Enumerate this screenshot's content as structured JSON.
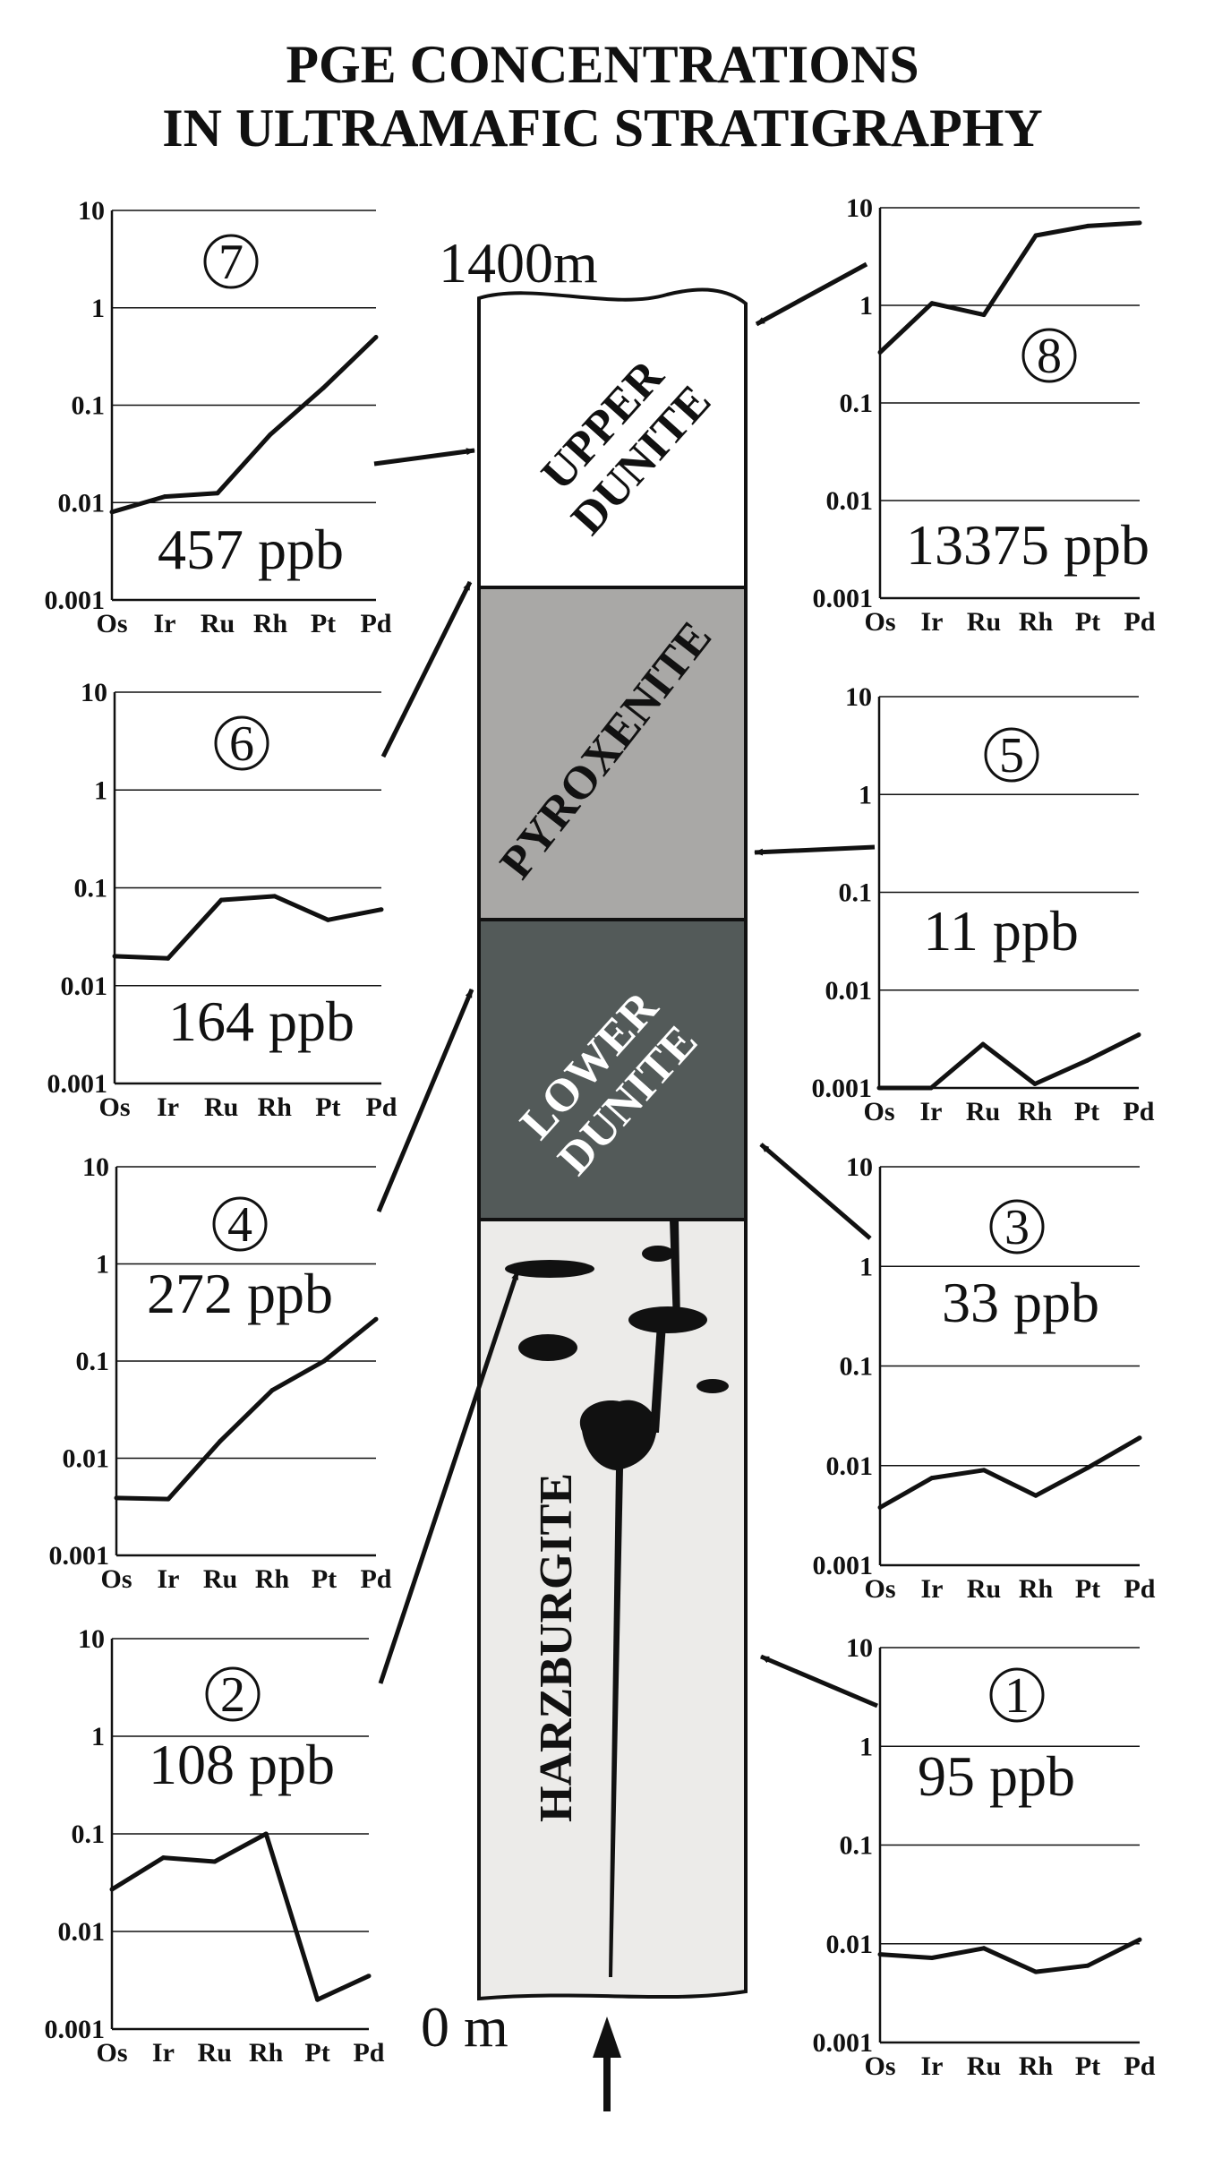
{
  "title": {
    "line1": "PGE CONCENTRATIONS",
    "line2": "IN ULTRAMAFIC STRATIGRAPHY"
  },
  "column": {
    "top_label": "1400m",
    "bottom_label": "0 m",
    "units": [
      {
        "name": "UPPER DUNITE",
        "lines": [
          "UPPER",
          "DUNITE"
        ],
        "fill": "#ffffff",
        "text_color": "#111111"
      },
      {
        "name": "PYROXENITE",
        "lines": [
          "PYROXENITE"
        ],
        "fill": "#a9a8a6",
        "text_color": "#111111"
      },
      {
        "name": "LOWER DUNITE",
        "lines": [
          "LOWER",
          "DUNITE"
        ],
        "fill": "#535a59",
        "text_color": "#ffffff"
      },
      {
        "name": "HARZBURGITE",
        "lines": [
          "HARZBURGITE"
        ],
        "fill": "#ecebe9",
        "text_color": "#111111"
      }
    ],
    "dike_color": "#111111"
  },
  "chart_data": [
    {
      "type": "line",
      "panel": "7",
      "total": "457 ppb",
      "x": [
        "Os",
        "Ir",
        "Ru",
        "Rh",
        "Pt",
        "Pd"
      ],
      "y": [
        0.008,
        0.0115,
        0.0125,
        0.05,
        0.15,
        0.5
      ],
      "yscale": "log",
      "ylim": [
        0.001,
        10
      ],
      "yticks": [
        "10",
        "1",
        "0.1",
        "0.01",
        "0.001"
      ]
    },
    {
      "type": "line",
      "panel": "8",
      "total": "13375 ppb",
      "x": [
        "Os",
        "Ir",
        "Ru",
        "Rh",
        "Pt",
        "Pd"
      ],
      "y": [
        0.33,
        1.05,
        0.8,
        5.2,
        6.5,
        7.0
      ],
      "yscale": "log",
      "ylim": [
        0.001,
        10
      ],
      "yticks": [
        "10",
        "1",
        "0.1",
        "0.01",
        "0.001"
      ]
    },
    {
      "type": "line",
      "panel": "6",
      "total": "164 ppb",
      "x": [
        "Os",
        "Ir",
        "Ru",
        "Rh",
        "Pt",
        "Pd"
      ],
      "y": [
        0.02,
        0.019,
        0.075,
        0.082,
        0.047,
        0.06
      ],
      "yscale": "log",
      "ylim": [
        0.001,
        10
      ],
      "yticks": [
        "10",
        "1",
        "0.1",
        "0.01",
        "0.001"
      ]
    },
    {
      "type": "line",
      "panel": "5",
      "total": "11 ppb",
      "x": [
        "Os",
        "Ir",
        "Ru",
        "Rh",
        "Pt",
        "Pd"
      ],
      "y": [
        0.001,
        0.001,
        0.0028,
        0.0011,
        0.0019,
        0.0035
      ],
      "yscale": "log",
      "ylim": [
        0.001,
        10
      ],
      "yticks": [
        "10",
        "1",
        "0.1",
        "0.01",
        "0.001"
      ]
    },
    {
      "type": "line",
      "panel": "4",
      "total": "272 ppb",
      "x": [
        "Os",
        "Ir",
        "Ru",
        "Rh",
        "Pt",
        "Pd"
      ],
      "y": [
        0.0039,
        0.0038,
        0.015,
        0.05,
        0.1,
        0.27
      ],
      "yscale": "log",
      "ylim": [
        0.001,
        10
      ],
      "yticks": [
        "10",
        "1",
        "0.1",
        "0.01",
        "0.001"
      ]
    },
    {
      "type": "line",
      "panel": "3",
      "total": "33 ppb",
      "x": [
        "Os",
        "Ir",
        "Ru",
        "Rh",
        "Pt",
        "Pd"
      ],
      "y": [
        0.0038,
        0.0075,
        0.009,
        0.005,
        0.0095,
        0.019
      ],
      "yscale": "log",
      "ylim": [
        0.001,
        10
      ],
      "yticks": [
        "10",
        "1",
        "0.1",
        "0.01",
        "0.001"
      ]
    },
    {
      "type": "line",
      "panel": "2",
      "total": "108 ppb",
      "x": [
        "Os",
        "Ir",
        "Ru",
        "Rh",
        "Pt",
        "Pd"
      ],
      "y": [
        0.027,
        0.057,
        0.052,
        0.1,
        0.002,
        0.0035
      ],
      "yscale": "log",
      "ylim": [
        0.001,
        10
      ],
      "yticks": [
        "10",
        "1",
        "0.1",
        "0.01",
        "0.001"
      ]
    },
    {
      "type": "line",
      "panel": "1",
      "total": "95 ppb",
      "x": [
        "Os",
        "Ir",
        "Ru",
        "Rh",
        "Pt",
        "Pd"
      ],
      "y": [
        0.0078,
        0.0072,
        0.009,
        0.0052,
        0.006,
        0.011
      ],
      "yscale": "log",
      "ylim": [
        0.001,
        10
      ],
      "yticks": [
        "10",
        "1",
        "0.1",
        "0.01",
        "0.001"
      ]
    }
  ]
}
